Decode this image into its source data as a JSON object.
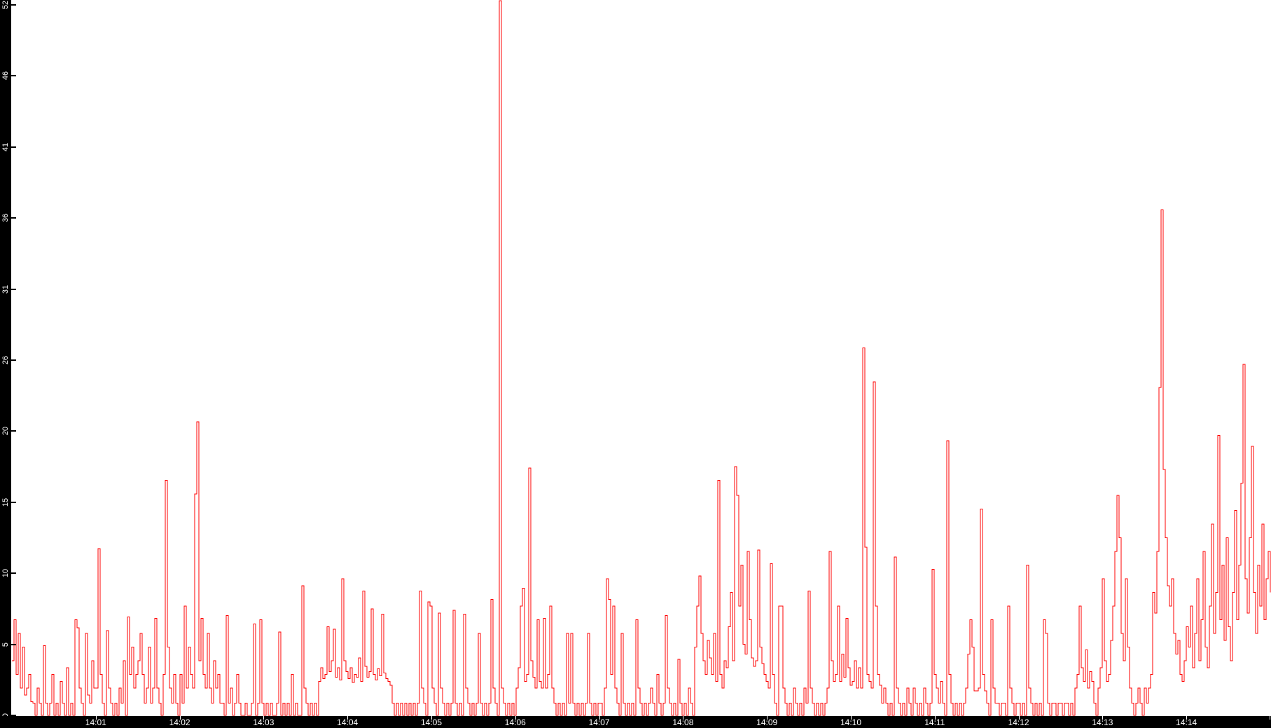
{
  "window": {
    "title": "",
    "background_color": "#ffffff",
    "axis_bar_color": "#000000",
    "axis_label_color": "#ffffff"
  },
  "chart_data": {
    "type": "line",
    "title": "",
    "xlabel": "",
    "ylabel": "",
    "grid": false,
    "legend": "none",
    "series_name": "traffic",
    "series_color": "#ff0000",
    "x_axis": {
      "start_time": "14:00",
      "end_time": "14:15",
      "tick_labels": [
        "14:01",
        "14:02",
        "14:03",
        "14:04",
        "14:05",
        "14:06",
        "14:07",
        "14:08",
        "14:09",
        "14:10",
        "14:11",
        "14:12",
        "14:13",
        "14:14"
      ],
      "extra_unlabeled_tick": true
    },
    "y_axis": {
      "min": 0,
      "max": 52,
      "tick_labels_top_to_bottom": [
        "52",
        "46",
        "41",
        "36",
        "31",
        "26",
        "20",
        "15",
        "10",
        "5",
        "0"
      ]
    },
    "sample_interval_seconds": 1.5,
    "peak_annotations": [
      {
        "time": "14:05:48",
        "value": 52.3
      },
      {
        "time": "14:13:41",
        "value": 37.0
      },
      {
        "time": "14:10:08",
        "value": 26.9
      },
      {
        "time": "14:14:39",
        "value": 25.7
      },
      {
        "time": "14:10:15",
        "value": 24.4
      },
      {
        "time": "14:02:12",
        "value": 21.5
      },
      {
        "time": "14:11:07",
        "value": 20.1
      },
      {
        "time": "14:08:36",
        "value": 18.2
      },
      {
        "time": "14:06:09",
        "value": 18.1
      },
      {
        "time": "14:01:50",
        "value": 17.2
      }
    ],
    "values": [
      4,
      7,
      3,
      6,
      2,
      5,
      1.5,
      2,
      3,
      1,
      0.9,
      0,
      2,
      0.9,
      0,
      5.1,
      0.9,
      0,
      0.9,
      3,
      0,
      0.9,
      0,
      2.5,
      0.9,
      0,
      3.5,
      0,
      0.9,
      0,
      7,
      6.4,
      2,
      0.9,
      0,
      6,
      1.5,
      0.9,
      4,
      2,
      2,
      12.2,
      3,
      0.9,
      0,
      6.2,
      2,
      0.9,
      0,
      0.9,
      0,
      2,
      0.9,
      4,
      0,
      7.2,
      3,
      5,
      2,
      3,
      4,
      6,
      3,
      0.9,
      2,
      5,
      0.9,
      2,
      7.1,
      2,
      0.9,
      0,
      3,
      17.2,
      5,
      2,
      0.9,
      3,
      0.9,
      0,
      3,
      0.9,
      8,
      2,
      5,
      3,
      2,
      16.2,
      21.5,
      4,
      7.1,
      3,
      2,
      6,
      2,
      0.9,
      4,
      2,
      3,
      0.9,
      0.9,
      0,
      7.3,
      0.9,
      2,
      0,
      0.9,
      3,
      0.9,
      0,
      0,
      0.9,
      0,
      0,
      0.9,
      6.7,
      0,
      0.9,
      7,
      0.9,
      0,
      0.9,
      0,
      0.9,
      0,
      0,
      0.9,
      6.1,
      0,
      0.9,
      0,
      0.9,
      0,
      3,
      0,
      0.9,
      0,
      0,
      9.5,
      2,
      0.9,
      0,
      0.9,
      0,
      0.9,
      0,
      2.5,
      3.5,
      2.7,
      3,
      6.5,
      3.2,
      4,
      6.3,
      2.8,
      3.5,
      2.6,
      10,
      4,
      3.2,
      2.7,
      3.5,
      2.4,
      3,
      2.8,
      4.2,
      2.5,
      9.1,
      3.6,
      2.8,
      3.2,
      7.8,
      3,
      2.6,
      3.4,
      2.9,
      7.4,
      3.1,
      2.7,
      2.5,
      2.2,
      0.9,
      0,
      0.9,
      0,
      0.9,
      0,
      0.9,
      0,
      0.9,
      0,
      0.9,
      0,
      0.9,
      9.1,
      2,
      0.9,
      0,
      8.3,
      8,
      2,
      0.9,
      0,
      7.5,
      2,
      0.9,
      0,
      0.9,
      0,
      0.9,
      7.7,
      0.9,
      0,
      0.9,
      0,
      7.4,
      2,
      0.9,
      0,
      0.9,
      0,
      0.9,
      6,
      0.9,
      0,
      0.9,
      0,
      0.9,
      8.5,
      2,
      0.9,
      0,
      52.3,
      2,
      0.9,
      0,
      0.9,
      0,
      0.9,
      0,
      2,
      3.5,
      8,
      9.3,
      2.5,
      3,
      18.1,
      4,
      2.8,
      2,
      7,
      2.5,
      2,
      7.1,
      2,
      3,
      8,
      2,
      0.9,
      0,
      0.9,
      0,
      0.9,
      0,
      6,
      0.9,
      6,
      0.9,
      0,
      0.9,
      0,
      0.9,
      0,
      0.9,
      6,
      0.9,
      0,
      0.9,
      0,
      0.9,
      0.9,
      0,
      2,
      10,
      8.5,
      3,
      8,
      2,
      0.9,
      0,
      6,
      0.9,
      0,
      0.9,
      0,
      0.9,
      0,
      7,
      2,
      0.9,
      0,
      0.9,
      0,
      0.9,
      2,
      0.9,
      0,
      3,
      0.9,
      0,
      0.9,
      7.3,
      2,
      0.9,
      0,
      0.9,
      0,
      4.1,
      0.9,
      0,
      0.9,
      0,
      2,
      0.9,
      0,
      5,
      8,
      10.2,
      6,
      4,
      3,
      5.5,
      4.2,
      3,
      6,
      2.5,
      17.2,
      3,
      2,
      4,
      3.5,
      6.5,
      9,
      4,
      18.2,
      16.1,
      8,
      11,
      5.2,
      4.5,
      12,
      7,
      4.2,
      3.6,
      4,
      12.1,
      5,
      3.8,
      3,
      2.5,
      2,
      11.1,
      3,
      0.9,
      0,
      8,
      8,
      2,
      0.9,
      0,
      0.9,
      0,
      2,
      0.9,
      0,
      0.9,
      0,
      2,
      0.9,
      9.1,
      2,
      0.9,
      0,
      0.9,
      0,
      0.9,
      0,
      0.9,
      2,
      12,
      4,
      2.5,
      3,
      8,
      2.5,
      4.5,
      2.8,
      7.1,
      3.5,
      2.2,
      2.5,
      4,
      2,
      3.5,
      2,
      26.9,
      12.3,
      3,
      2.5,
      2,
      24.4,
      8,
      3,
      2.2,
      0.9,
      2,
      0.9,
      0,
      0.9,
      0,
      11.6,
      2,
      0.9,
      0,
      0.9,
      0,
      2,
      0.9,
      0,
      2,
      0.9,
      0,
      0.9,
      0,
      2,
      0.9,
      0,
      0.9,
      10.7,
      3,
      2,
      0.9,
      2.5,
      0.9,
      0,
      20.1,
      3,
      0.9,
      0,
      0.9,
      0,
      0.9,
      0,
      0.9,
      2,
      4.5,
      7,
      5,
      1.8,
      1.8,
      2,
      15.1,
      3,
      1.8,
      0.9,
      0,
      7,
      2,
      0.9,
      0.9,
      0,
      0.9,
      0.9,
      0,
      8,
      2,
      0.9,
      0,
      0.9,
      0.9,
      0,
      0.9,
      0,
      11,
      2,
      0.9,
      0,
      0.9,
      0,
      0.9,
      0,
      7,
      6,
      0.9,
      0,
      0.9,
      0.9,
      0,
      0.9,
      0.9,
      0,
      0.9,
      0.9,
      0,
      0.9,
      0,
      2,
      3,
      8,
      3.5,
      2.5,
      4.8,
      2,
      3.2,
      2.5,
      0.9,
      0,
      2,
      3.5,
      10,
      4,
      2.5,
      3,
      5.5,
      8,
      12,
      16.1,
      13,
      6,
      4,
      10,
      5,
      2,
      0.9,
      0,
      0.9,
      2,
      0.9,
      0,
      2,
      0.9,
      2,
      3,
      9,
      7.5,
      12,
      24,
      37,
      18,
      13,
      9.5,
      8,
      10,
      6,
      4.5,
      5.5,
      3,
      2.5,
      4,
      6.5,
      5,
      8,
      3.5,
      6,
      10,
      4,
      7,
      12,
      5,
      3.5,
      8,
      14,
      6,
      9,
      20.5,
      7,
      11,
      5.5,
      13,
      6.5,
      4,
      9,
      15,
      7,
      11,
      17,
      25.7,
      10,
      7.5,
      13,
      19.7,
      9,
      6,
      11,
      8,
      14,
      7,
      10,
      12,
      9
    ]
  }
}
